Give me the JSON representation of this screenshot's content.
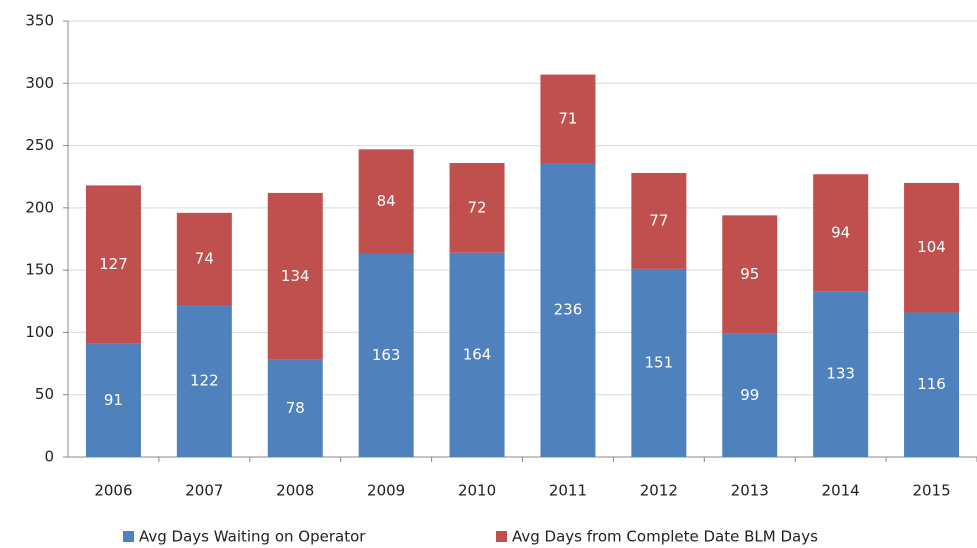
{
  "chart_data": {
    "type": "stacked_bar",
    "categories": [
      "2006",
      "2007",
      "2008",
      "2009",
      "2010",
      "2011",
      "2012",
      "2013",
      "2014",
      "2015"
    ],
    "series": [
      {
        "name": "Avg Days Waiting on Operator",
        "color": "#4f81bd",
        "values": [
          91,
          122,
          78,
          163,
          164,
          236,
          151,
          99,
          133,
          116
        ]
      },
      {
        "name": "Avg Days from Complete Date BLM Days",
        "color": "#c0504d",
        "values": [
          127,
          74,
          134,
          84,
          72,
          71,
          77,
          95,
          94,
          104
        ]
      }
    ],
    "ylim": [
      0,
      350
    ],
    "yticks": [
      0,
      50,
      100,
      150,
      200,
      250,
      300,
      350
    ],
    "grid": true,
    "legend": "bottom"
  }
}
